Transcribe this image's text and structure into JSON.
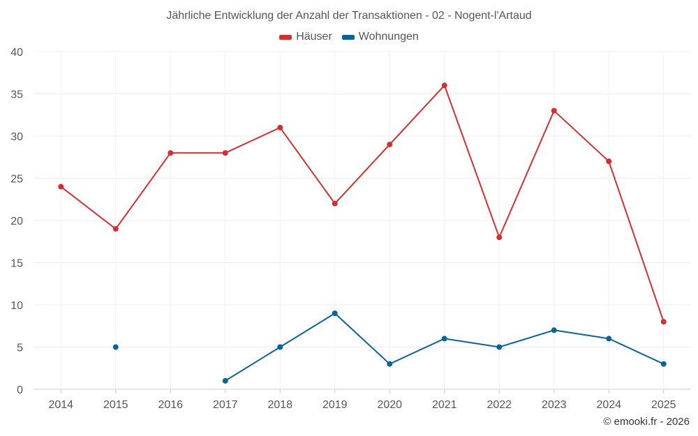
{
  "chart_data": {
    "type": "line",
    "title": "Jährliche Entwicklung der Anzahl der Transaktionen - 02 - Nogent-l'Artaud",
    "xlabel": "",
    "ylabel": "",
    "categories": [
      "2014",
      "2015",
      "2016",
      "2017",
      "2018",
      "2019",
      "2020",
      "2021",
      "2022",
      "2023",
      "2024",
      "2025"
    ],
    "ylim": [
      0,
      40
    ],
    "yticks": [
      0,
      5,
      10,
      15,
      20,
      25,
      30,
      35,
      40
    ],
    "grid": true,
    "legend_position": "top-center",
    "series": [
      {
        "name": "Häuser",
        "color": "#d32f2f",
        "values": [
          24,
          19,
          28,
          28,
          31,
          22,
          29,
          36,
          18,
          33,
          27,
          8
        ]
      },
      {
        "name": "Wohnungen",
        "color": "#0a6496",
        "values": [
          null,
          5,
          null,
          1,
          5,
          9,
          3,
          6,
          5,
          7,
          6,
          3
        ]
      }
    ]
  },
  "credit": "© emooki.fr - 2026"
}
